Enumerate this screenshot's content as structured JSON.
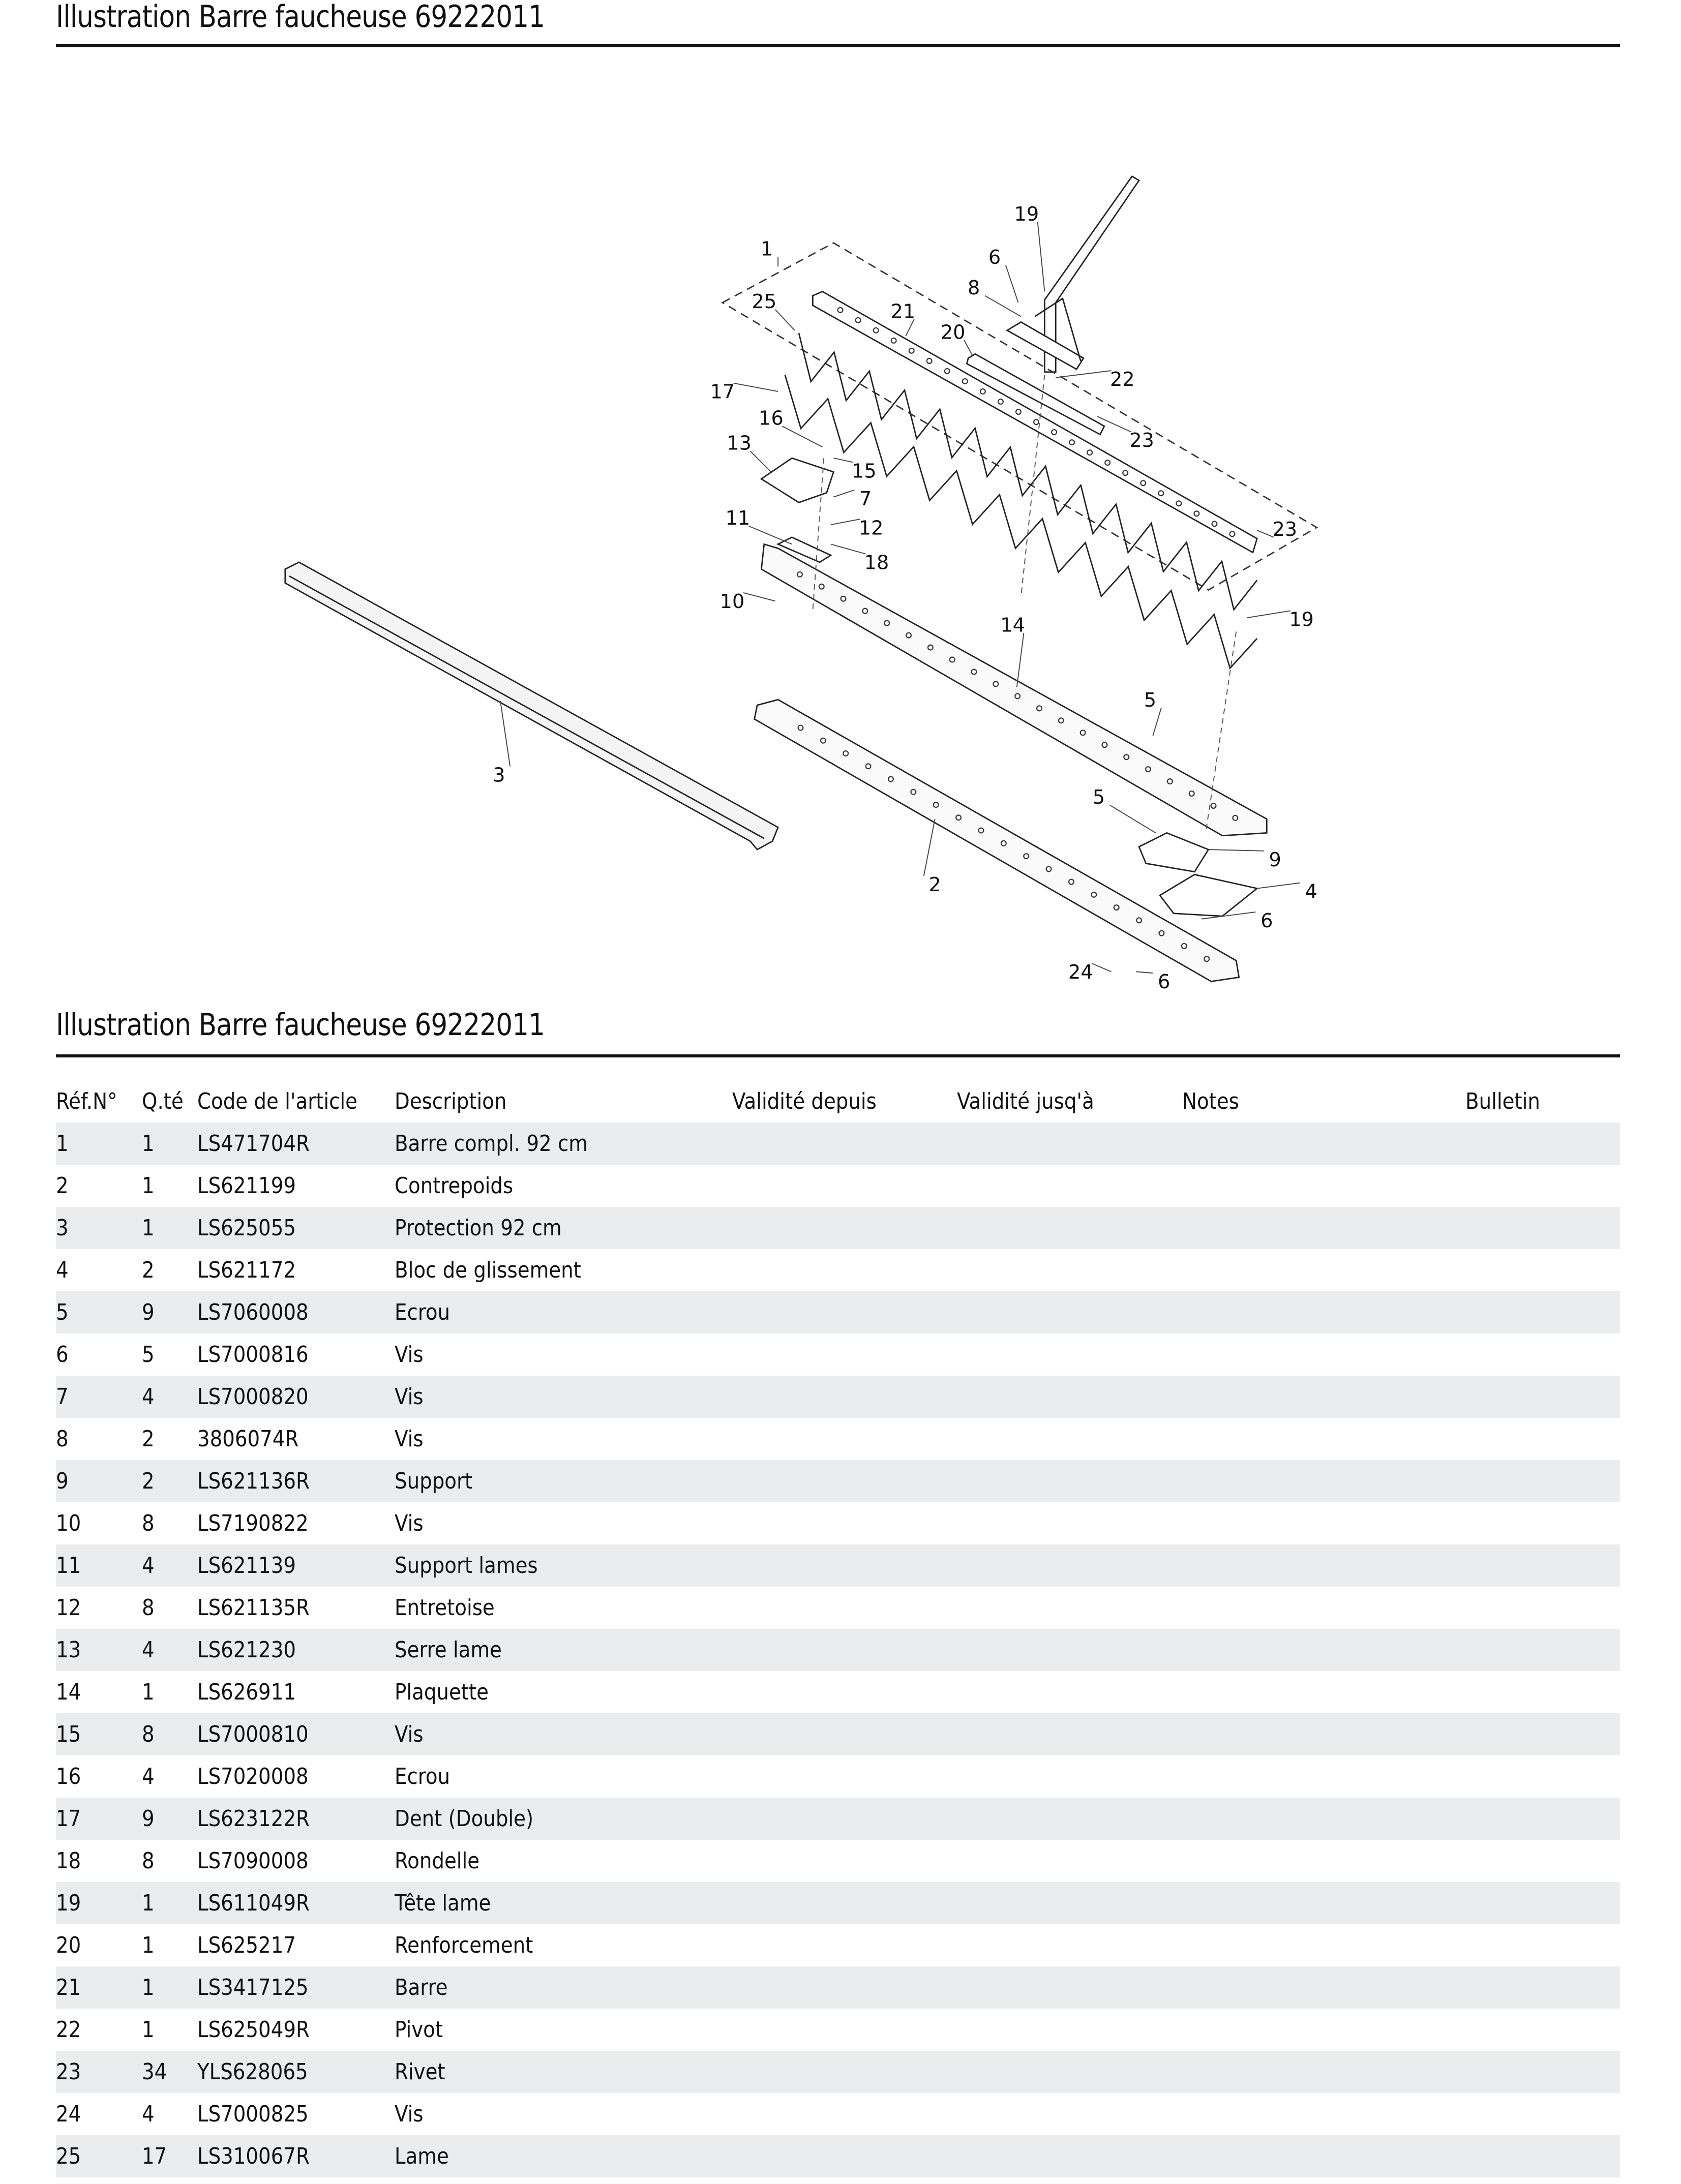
{
  "header": {
    "title": "Illustration  Barre faucheuse 69222011"
  },
  "diagram": {
    "callouts": [
      "1",
      "25",
      "21",
      "20",
      "8",
      "6",
      "19",
      "22",
      "23",
      "23",
      "17",
      "16",
      "13",
      "15",
      "7",
      "11",
      "12",
      "18",
      "10",
      "14",
      "19",
      "5",
      "3",
      "5",
      "9",
      "4",
      "6",
      "2",
      "24",
      "6"
    ]
  },
  "section": {
    "title": "Illustration  Barre faucheuse 69222011"
  },
  "table": {
    "headers": [
      "Réf.N°",
      "Q.té",
      "Code de l'article",
      "Description",
      "Validité depuis",
      "Validité jusq'à",
      "Notes",
      "Bulletin"
    ],
    "rows": [
      [
        "1",
        "1",
        "LS471704R",
        "Barre compl. 92 cm"
      ],
      [
        "2",
        "1",
        "LS621199",
        "Contrepoids"
      ],
      [
        "3",
        "1",
        "LS625055",
        "Protection 92 cm"
      ],
      [
        "4",
        "2",
        "LS621172",
        "Bloc de glissement"
      ],
      [
        "5",
        "9",
        "LS7060008",
        "Ecrou"
      ],
      [
        "6",
        "5",
        "LS7000816",
        "Vis"
      ],
      [
        "7",
        "4",
        "LS7000820",
        "Vis"
      ],
      [
        "8",
        "2",
        "3806074R",
        "Vis"
      ],
      [
        "9",
        "2",
        "LS621136R",
        "Support"
      ],
      [
        "10",
        "8",
        "LS7190822",
        "Vis"
      ],
      [
        "11",
        "4",
        "LS621139",
        "Support lames"
      ],
      [
        "12",
        "8",
        "LS621135R",
        "Entretoise"
      ],
      [
        "13",
        "4",
        "LS621230",
        "Serre lame"
      ],
      [
        "14",
        "1",
        "LS626911",
        "Plaquette"
      ],
      [
        "15",
        "8",
        "LS7000810",
        "Vis"
      ],
      [
        "16",
        "4",
        "LS7020008",
        "Ecrou"
      ],
      [
        "17",
        "9",
        "LS623122R",
        "Dent (Double)"
      ],
      [
        "18",
        "8",
        "LS7090008",
        "Rondelle"
      ],
      [
        "19",
        "1",
        "LS611049R",
        "Tête lame"
      ],
      [
        "20",
        "1",
        "LS625217",
        "Renforcement"
      ],
      [
        "21",
        "1",
        "LS3417125",
        "Barre"
      ],
      [
        "22",
        "1",
        "LS625049R",
        "Pivot"
      ],
      [
        "23",
        "34",
        "YLS628065",
        "Rivet"
      ],
      [
        "24",
        "4",
        "LS7000825",
        "Vis"
      ],
      [
        "25",
        "17",
        "LS310067R",
        "Lame"
      ]
    ]
  },
  "colors": {
    "row_shade": "#ebecee",
    "rule": "#111111"
  }
}
